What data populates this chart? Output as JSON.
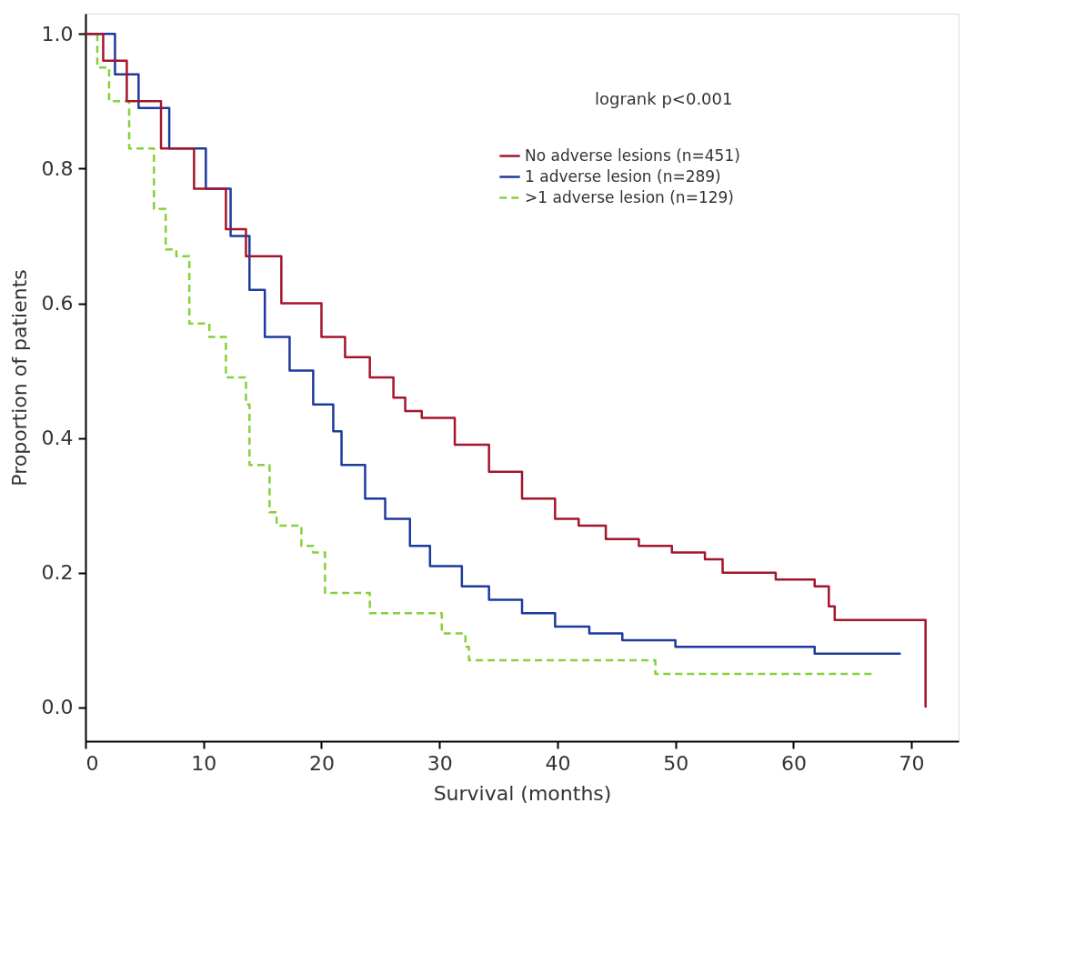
{
  "chart_data": {
    "type": "step",
    "xlabel": "Survival (months)",
    "ylabel": "Proportion of patients",
    "annotations": [
      "logrank p<0.001"
    ],
    "xlim": [
      0,
      74
    ],
    "xticks": [
      0,
      10,
      20,
      30,
      40,
      50,
      60,
      70
    ],
    "ylim": [
      -0.05,
      1.03
    ],
    "yticks": [
      {
        "value": 0,
        "label": "0.0"
      },
      0.2,
      0.4,
      0.6,
      0.8,
      {
        "value": 1,
        "label": "1.0"
      }
    ],
    "grid": false,
    "legend": "top right",
    "line_style": "solid",
    "series": [
      {
        "name": "No adverse lesions (n=451)",
        "color": "#a3162b",
        "x": [
          0,
          1.5,
          3.5,
          6.4,
          9.2,
          11.9,
          13.6,
          16.6,
          20.0,
          22.0,
          24.1,
          26.1,
          27.1,
          28.5,
          31.3,
          34.2,
          37.0,
          39.8,
          41.8,
          44.1,
          46.9,
          49.7,
          52.5,
          54.0,
          58.5,
          59.6,
          61.8,
          63.0,
          63.5,
          71.2,
          71.2
        ],
        "values": [
          1.0,
          0.96,
          0.9,
          0.83,
          0.77,
          0.71,
          0.67,
          0.6,
          0.55,
          0.52,
          0.49,
          0.46,
          0.44,
          0.43,
          0.39,
          0.35,
          0.31,
          0.28,
          0.27,
          0.25,
          0.24,
          0.23,
          0.22,
          0.2,
          0.19,
          0.19,
          0.18,
          0.15,
          0.13,
          0.13,
          0.0
        ]
      },
      {
        "name": "1 adverse lesion      (n=289)",
        "color": "#1f3a9e",
        "x": [
          0,
          2.5,
          4.5,
          7.1,
          10.2,
          12.3,
          13.9,
          15.2,
          17.3,
          19.3,
          21.0,
          21.7,
          23.7,
          25.4,
          27.5,
          29.2,
          31.9,
          34.2,
          37.0,
          39.8,
          42.7,
          45.5,
          48.3,
          50.0,
          61.8,
          69.1
        ],
        "values": [
          1.0,
          0.94,
          0.89,
          0.83,
          0.77,
          0.7,
          0.62,
          0.55,
          0.5,
          0.45,
          0.41,
          0.36,
          0.31,
          0.28,
          0.24,
          0.21,
          0.18,
          0.16,
          0.14,
          0.12,
          0.11,
          0.1,
          0.1,
          0.09,
          0.08,
          0.08
        ]
      },
      {
        "name": ">1 adverse lesion  (n=129)",
        "color": "#84d13a",
        "line_style": "dashed",
        "x": [
          0,
          1,
          2,
          3.7,
          5.8,
          6.8,
          7.7,
          8.8,
          10.5,
          11.9,
          13.6,
          13.9,
          15.6,
          16.2,
          18.3,
          19.3,
          20.3,
          23.7,
          24.1,
          29.4,
          30.2,
          32.2,
          32.5,
          48.3,
          66.9
        ],
        "values": [
          1.0,
          0.95,
          0.9,
          0.83,
          0.74,
          0.68,
          0.67,
          0.57,
          0.55,
          0.49,
          0.45,
          0.36,
          0.29,
          0.27,
          0.24,
          0.23,
          0.17,
          0.17,
          0.14,
          0.14,
          0.11,
          0.09,
          0.07,
          0.05,
          0.05
        ]
      }
    ]
  }
}
